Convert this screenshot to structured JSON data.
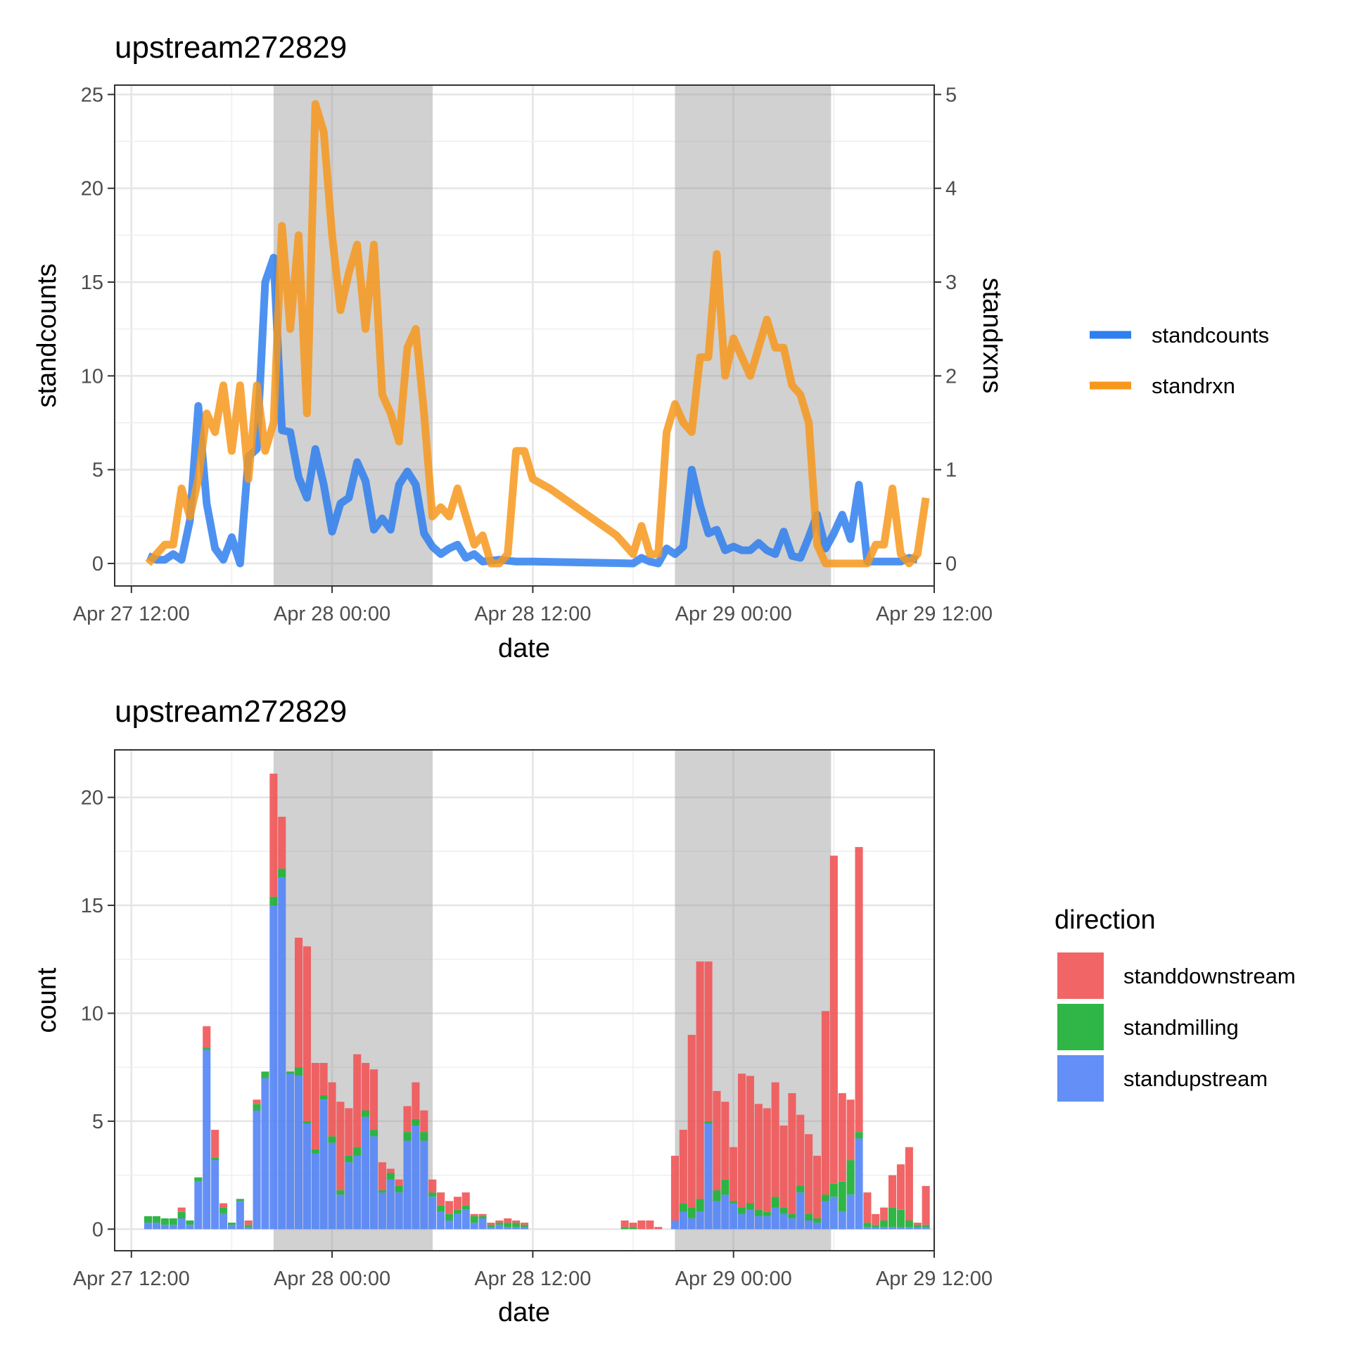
{
  "chart_data": [
    {
      "type": "line",
      "title": "upstream272829",
      "xlabel": "date",
      "ylabel": "standcounts",
      "y2label": "standrxns",
      "x_ticks": [
        "Apr 27 12:00",
        "Apr 28 00:00",
        "Apr 28 12:00",
        "Apr 29 00:00",
        "Apr 29 12:00"
      ],
      "xlim": [
        "2020-04-27T11:00",
        "2020-04-29T12:00"
      ],
      "ylim": [
        -1.2,
        25.5
      ],
      "y_ticks": [
        0,
        5,
        10,
        15,
        20,
        25
      ],
      "y2_ticks": [
        0,
        1,
        2,
        3,
        4,
        5
      ],
      "y2_scale": 5,
      "grid": true,
      "legend_position": "right",
      "night_shading": [
        {
          "start": "2020-04-27T20:30",
          "end": "2020-04-28T06:00"
        },
        {
          "start": "2020-04-28T20:30",
          "end": "2020-04-29T05:50"
        }
      ],
      "series": [
        {
          "name": "standcounts",
          "color": "#2F7FEF",
          "axis": "left",
          "x": [
            "2020-04-27T13:00",
            "2020-04-27T13:30",
            "2020-04-27T14:00",
            "2020-04-27T14:30",
            "2020-04-27T15:00",
            "2020-04-27T15:30",
            "2020-04-27T16:00",
            "2020-04-27T16:30",
            "2020-04-27T17:00",
            "2020-04-27T17:30",
            "2020-04-27T18:00",
            "2020-04-27T18:30",
            "2020-04-27T19:00",
            "2020-04-27T19:30",
            "2020-04-27T20:00",
            "2020-04-27T20:30",
            "2020-04-27T21:00",
            "2020-04-27T21:30",
            "2020-04-27T22:00",
            "2020-04-27T22:30",
            "2020-04-27T23:00",
            "2020-04-27T23:30",
            "2020-04-28T00:00",
            "2020-04-28T00:30",
            "2020-04-28T01:00",
            "2020-04-28T01:30",
            "2020-04-28T02:00",
            "2020-04-28T02:30",
            "2020-04-28T03:00",
            "2020-04-28T03:30",
            "2020-04-28T04:00",
            "2020-04-28T04:30",
            "2020-04-28T05:00",
            "2020-04-28T05:30",
            "2020-04-28T06:00",
            "2020-04-28T06:30",
            "2020-04-28T07:00",
            "2020-04-28T07:30",
            "2020-04-28T08:00",
            "2020-04-28T08:30",
            "2020-04-28T09:00",
            "2020-04-28T10:00",
            "2020-04-28T11:00",
            "2020-04-28T12:00",
            "2020-04-28T18:00",
            "2020-04-28T18:30",
            "2020-04-28T19:00",
            "2020-04-28T19:30",
            "2020-04-28T20:00",
            "2020-04-28T20:30",
            "2020-04-28T21:00",
            "2020-04-28T21:30",
            "2020-04-28T22:00",
            "2020-04-28T22:30",
            "2020-04-28T23:00",
            "2020-04-28T23:30",
            "2020-04-29T00:00",
            "2020-04-29T00:30",
            "2020-04-29T01:00",
            "2020-04-29T01:30",
            "2020-04-29T02:00",
            "2020-04-29T02:30",
            "2020-04-29T03:00",
            "2020-04-29T03:30",
            "2020-04-29T04:00",
            "2020-04-29T04:30",
            "2020-04-29T05:00",
            "2020-04-29T05:30",
            "2020-04-29T06:00",
            "2020-04-29T06:30",
            "2020-04-29T07:00",
            "2020-04-29T07:30",
            "2020-04-29T08:00",
            "2020-04-29T09:00",
            "2020-04-29T10:00",
            "2020-04-29T10:30",
            "2020-04-29T11:00"
          ],
          "values": [
            0.4,
            0.2,
            0.2,
            0.5,
            0.2,
            2.3,
            8.4,
            3.2,
            0.8,
            0.2,
            1.4,
            0.0,
            5.7,
            6.1,
            15.0,
            16.3,
            7.1,
            7.0,
            4.6,
            3.5,
            6.1,
            4.2,
            1.7,
            3.2,
            3.5,
            5.4,
            4.4,
            1.8,
            2.4,
            1.8,
            4.2,
            4.9,
            4.2,
            1.6,
            0.9,
            0.5,
            0.8,
            1.0,
            0.3,
            0.5,
            0.1,
            0.2,
            0.1,
            0.1,
            0.0,
            0.3,
            0.1,
            0.0,
            0.8,
            0.5,
            0.9,
            5.0,
            3.1,
            1.6,
            1.8,
            0.7,
            0.9,
            0.7,
            0.7,
            1.1,
            0.7,
            0.5,
            1.7,
            0.4,
            0.3,
            1.4,
            2.6,
            0.8,
            1.6,
            2.6,
            1.3,
            4.2,
            0.1,
            0.1,
            0.1,
            0.3,
            0.2
          ]
        },
        {
          "name": "standrxn",
          "color": "#F7981D",
          "axis": "right",
          "x": [
            "2020-04-27T13:00",
            "2020-04-27T13:30",
            "2020-04-27T14:00",
            "2020-04-27T14:30",
            "2020-04-27T15:00",
            "2020-04-27T15:30",
            "2020-04-27T16:00",
            "2020-04-27T16:30",
            "2020-04-27T17:00",
            "2020-04-27T17:30",
            "2020-04-27T18:00",
            "2020-04-27T18:30",
            "2020-04-27T19:00",
            "2020-04-27T19:30",
            "2020-04-27T20:00",
            "2020-04-27T20:30",
            "2020-04-27T21:00",
            "2020-04-27T21:30",
            "2020-04-27T22:00",
            "2020-04-27T22:30",
            "2020-04-27T23:00",
            "2020-04-27T23:30",
            "2020-04-28T00:00",
            "2020-04-28T00:30",
            "2020-04-28T01:00",
            "2020-04-28T01:30",
            "2020-04-28T02:00",
            "2020-04-28T02:30",
            "2020-04-28T03:00",
            "2020-04-28T03:30",
            "2020-04-28T04:00",
            "2020-04-28T04:30",
            "2020-04-28T05:00",
            "2020-04-28T05:30",
            "2020-04-28T06:00",
            "2020-04-28T06:30",
            "2020-04-28T07:00",
            "2020-04-28T07:30",
            "2020-04-28T08:00",
            "2020-04-28T08:30",
            "2020-04-28T09:00",
            "2020-04-28T09:30",
            "2020-04-28T10:00",
            "2020-04-28T10:30",
            "2020-04-28T11:00",
            "2020-04-28T11:30",
            "2020-04-28T12:00",
            "2020-04-28T13:00",
            "2020-04-28T17:00",
            "2020-04-28T18:00",
            "2020-04-28T18:30",
            "2020-04-28T19:00",
            "2020-04-28T19:30",
            "2020-04-28T20:00",
            "2020-04-28T20:30",
            "2020-04-28T21:00",
            "2020-04-28T21:30",
            "2020-04-28T22:00",
            "2020-04-28T22:30",
            "2020-04-28T23:00",
            "2020-04-28T23:30",
            "2020-04-29T00:00",
            "2020-04-29T00:30",
            "2020-04-29T01:00",
            "2020-04-29T01:30",
            "2020-04-29T02:00",
            "2020-04-29T02:30",
            "2020-04-29T03:00",
            "2020-04-29T03:30",
            "2020-04-29T04:00",
            "2020-04-29T04:30",
            "2020-04-29T05:00",
            "2020-04-29T05:30",
            "2020-04-29T06:00",
            "2020-04-29T07:00",
            "2020-04-29T08:00",
            "2020-04-29T08:30",
            "2020-04-29T09:00",
            "2020-04-29T09:30",
            "2020-04-29T10:00",
            "2020-04-29T10:30",
            "2020-04-29T11:00",
            "2020-04-29T11:30"
          ],
          "values": [
            0.0,
            0.1,
            0.2,
            0.2,
            0.8,
            0.5,
            0.9,
            1.6,
            1.4,
            1.9,
            1.2,
            1.9,
            0.9,
            1.9,
            1.2,
            1.5,
            3.6,
            2.5,
            3.5,
            1.6,
            4.9,
            4.6,
            3.5,
            2.7,
            3.1,
            3.4,
            2.5,
            3.4,
            1.8,
            1.6,
            1.3,
            2.3,
            2.5,
            1.6,
            0.5,
            0.6,
            0.5,
            0.8,
            0.5,
            0.2,
            0.3,
            0.0,
            0.0,
            0.1,
            1.2,
            1.2,
            0.9,
            0.8,
            0.3,
            0.1,
            0.4,
            0.1,
            0.1,
            1.4,
            1.7,
            1.5,
            1.4,
            2.2,
            2.2,
            3.3,
            2.0,
            2.4,
            2.2,
            2.0,
            2.3,
            2.6,
            2.3,
            2.3,
            1.9,
            1.8,
            1.5,
            0.2,
            0.0,
            0.0,
            0.0,
            0.0,
            0.2,
            0.2,
            0.8,
            0.1,
            0.0,
            0.1,
            0.7
          ]
        }
      ]
    },
    {
      "type": "bar",
      "stacked": true,
      "title": "upstream272829",
      "xlabel": "date",
      "ylabel": "count",
      "x_ticks": [
        "Apr 27 12:00",
        "Apr 28 00:00",
        "Apr 28 12:00",
        "Apr 29 00:00",
        "Apr 29 12:00"
      ],
      "xlim": [
        "2020-04-27T11:00",
        "2020-04-29T12:00"
      ],
      "ylim": [
        -1.0,
        22.2
      ],
      "y_ticks": [
        0,
        5,
        10,
        15,
        20
      ],
      "bar_width_minutes": 28,
      "grid": true,
      "legend_title": "direction",
      "legend_position": "right",
      "night_shading": [
        {
          "start": "2020-04-27T20:30",
          "end": "2020-04-28T06:00"
        },
        {
          "start": "2020-04-28T20:30",
          "end": "2020-04-29T05:50"
        }
      ],
      "x": [
        "2020-04-27T13:00",
        "2020-04-27T13:30",
        "2020-04-27T14:00",
        "2020-04-27T14:30",
        "2020-04-27T15:00",
        "2020-04-27T15:30",
        "2020-04-27T16:00",
        "2020-04-27T16:30",
        "2020-04-27T17:00",
        "2020-04-27T17:30",
        "2020-04-27T18:00",
        "2020-04-27T18:30",
        "2020-04-27T19:00",
        "2020-04-27T19:30",
        "2020-04-27T20:00",
        "2020-04-27T20:30",
        "2020-04-27T21:00",
        "2020-04-27T21:30",
        "2020-04-27T22:00",
        "2020-04-27T22:30",
        "2020-04-27T23:00",
        "2020-04-27T23:30",
        "2020-04-28T00:00",
        "2020-04-28T00:30",
        "2020-04-28T01:00",
        "2020-04-28T01:30",
        "2020-04-28T02:00",
        "2020-04-28T02:30",
        "2020-04-28T03:00",
        "2020-04-28T03:30",
        "2020-04-28T04:00",
        "2020-04-28T04:30",
        "2020-04-28T05:00",
        "2020-04-28T05:30",
        "2020-04-28T06:00",
        "2020-04-28T06:30",
        "2020-04-28T07:00",
        "2020-04-28T07:30",
        "2020-04-28T08:00",
        "2020-04-28T08:30",
        "2020-04-28T09:00",
        "2020-04-28T09:30",
        "2020-04-28T10:00",
        "2020-04-28T10:30",
        "2020-04-28T11:00",
        "2020-04-28T11:30",
        "2020-04-28T17:30",
        "2020-04-28T18:00",
        "2020-04-28T18:30",
        "2020-04-28T19:00",
        "2020-04-28T19:30",
        "2020-04-28T20:00",
        "2020-04-28T20:30",
        "2020-04-28T21:00",
        "2020-04-28T21:30",
        "2020-04-28T22:00",
        "2020-04-28T22:30",
        "2020-04-28T23:00",
        "2020-04-28T23:30",
        "2020-04-29T00:00",
        "2020-04-29T00:30",
        "2020-04-29T01:00",
        "2020-04-29T01:30",
        "2020-04-29T02:00",
        "2020-04-29T02:30",
        "2020-04-29T03:00",
        "2020-04-29T03:30",
        "2020-04-29T04:00",
        "2020-04-29T04:30",
        "2020-04-29T05:00",
        "2020-04-29T05:30",
        "2020-04-29T06:00",
        "2020-04-29T06:30",
        "2020-04-29T07:00",
        "2020-04-29T07:30",
        "2020-04-29T08:00",
        "2020-04-29T08:30",
        "2020-04-29T09:00",
        "2020-04-29T09:30",
        "2020-04-29T10:00",
        "2020-04-29T10:30",
        "2020-04-29T11:00",
        "2020-04-29T11:30"
      ],
      "series": [
        {
          "name": "standupstream",
          "color": "#5685F5",
          "values": [
            0.3,
            0.3,
            0.2,
            0.2,
            0.5,
            0.2,
            2.2,
            8.3,
            3.2,
            0.7,
            0.2,
            1.3,
            0.1,
            5.5,
            7.0,
            15.0,
            16.3,
            7.2,
            7.1,
            4.9,
            3.5,
            6.0,
            4.0,
            1.6,
            3.1,
            3.4,
            5.2,
            4.3,
            1.7,
            2.3,
            1.7,
            4.1,
            4.8,
            4.1,
            1.5,
            0.8,
            0.4,
            0.7,
            0.9,
            0.3,
            0.5,
            0.1,
            0.2,
            0.1,
            0.1,
            0.1,
            0.0,
            0.0,
            0.0,
            0.0,
            0.0,
            0.0,
            0.4,
            0.8,
            0.5,
            0.8,
            4.9,
            1.3,
            1.6,
            1.2,
            0.7,
            0.9,
            0.6,
            0.6,
            1.0,
            0.7,
            0.5,
            1.7,
            0.4,
            0.3,
            1.3,
            1.5,
            0.8,
            1.6,
            4.2,
            0.1,
            0.1,
            0.1,
            0.1,
            0.1,
            0.1,
            0.1,
            0.1
          ]
        },
        {
          "name": "standmilling",
          "color": "#1EB036",
          "values": [
            0.3,
            0.3,
            0.3,
            0.3,
            0.3,
            0.2,
            0.2,
            0.1,
            0.1,
            0.3,
            0.1,
            0.1,
            0.1,
            0.3,
            0.3,
            0.4,
            0.4,
            0.1,
            0.4,
            0.1,
            0.2,
            0.2,
            0.3,
            0.2,
            0.3,
            0.4,
            0.3,
            0.3,
            0.1,
            0.3,
            0.3,
            0.4,
            0.3,
            0.4,
            0.2,
            0.3,
            0.3,
            0.2,
            0.2,
            0.3,
            0.1,
            0.1,
            0.1,
            0.2,
            0.2,
            0.1,
            0.1,
            0.1,
            0.0,
            0.0,
            0.0,
            0.0,
            0.0,
            0.4,
            0.5,
            0.6,
            0.1,
            0.5,
            0.7,
            0.1,
            0.3,
            0.3,
            0.3,
            0.2,
            0.5,
            0.3,
            0.2,
            0.3,
            0.3,
            0.2,
            0.3,
            0.6,
            1.4,
            1.6,
            0.3,
            0.2,
            0.1,
            0.3,
            0.9,
            0.8,
            0.3,
            0.1,
            0.1
          ]
        },
        {
          "name": "standdownstream",
          "color": "#F0585A",
          "values": [
            0.0,
            0.0,
            0.0,
            0.0,
            0.2,
            0.0,
            0.0,
            1.0,
            1.3,
            0.2,
            0.0,
            0.0,
            0.2,
            0.2,
            0.0,
            5.7,
            2.4,
            0.0,
            6.0,
            8.1,
            4.0,
            1.5,
            2.5,
            4.1,
            2.2,
            4.3,
            2.2,
            2.8,
            1.3,
            0.2,
            0.3,
            1.2,
            1.7,
            1.0,
            0.6,
            0.6,
            0.6,
            0.6,
            0.6,
            0.1,
            0.1,
            0.1,
            0.1,
            0.2,
            0.1,
            0.1,
            0.3,
            0.2,
            0.4,
            0.4,
            0.1,
            0.0,
            3.0,
            3.4,
            8.0,
            11.0,
            7.4,
            4.6,
            3.6,
            2.5,
            6.2,
            5.9,
            4.9,
            4.8,
            5.3,
            3.8,
            5.6,
            3.3,
            3.7,
            2.9,
            8.5,
            15.2,
            4.1,
            2.8,
            13.2,
            1.4,
            0.5,
            0.6,
            1.5,
            2.1,
            3.4,
            0.1,
            1.8
          ]
        }
      ]
    }
  ]
}
